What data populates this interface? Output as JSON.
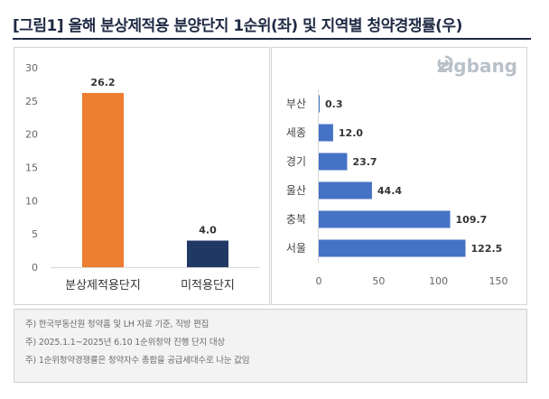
{
  "title": "[그림1] 올해 분상제적용 분양단지 1순위(좌) 및 지역별 청약경쟁률(우)",
  "logo": {
    "text": "zigbang",
    "icon": "zigbang-logo-icon"
  },
  "colors": {
    "left_bar_1": "#ed7d31",
    "left_bar_2": "#203864",
    "right_bar": "#4472c4",
    "title": "#1f2a44"
  },
  "chart_data": [
    {
      "type": "bar",
      "orientation": "vertical",
      "categories": [
        "분상제적용단지",
        "미적용단지"
      ],
      "values": [
        26.2,
        4.0
      ],
      "value_labels": [
        "26.2",
        "4.0"
      ],
      "ylim": [
        0,
        30
      ],
      "yticks": [
        0,
        5,
        10,
        15,
        20,
        25,
        30
      ],
      "grid": false,
      "xlabel": "",
      "ylabel": ""
    },
    {
      "type": "bar",
      "orientation": "horizontal",
      "categories": [
        "부산",
        "세종",
        "경기",
        "울산",
        "충북",
        "서울"
      ],
      "values": [
        0.3,
        12.0,
        23.7,
        44.4,
        109.7,
        122.5
      ],
      "value_labels": [
        "0.3",
        "12.0",
        "23.7",
        "44.4",
        "109.7",
        "122.5"
      ],
      "xlim": [
        0,
        150
      ],
      "xticks": [
        0,
        50,
        100,
        150
      ],
      "grid": false,
      "xlabel": "",
      "ylabel": ""
    }
  ],
  "notes": [
    "주) 한국부동산원 청약홈 및 LH 자료 기준, 직방 편집",
    "주) 2025.1.1~2025년 6.10 1순위청약 진행 단지 대상",
    "주) 1순위청약경쟁률은 청약자수 총합을 공급세대수로 나눈 값임"
  ]
}
